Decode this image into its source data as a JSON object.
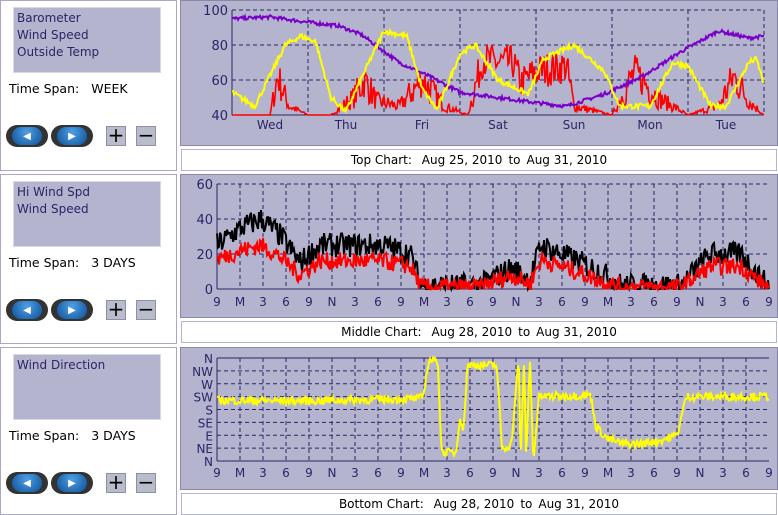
{
  "panels": [
    {
      "series": [
        "Barometer",
        "Wind Speed",
        "Outside Temp"
      ],
      "time_span_label": "Time Span:",
      "time_span": "WEEK"
    },
    {
      "series": [
        "Hi Wind Spd",
        "Wind Speed"
      ],
      "time_span_label": "Time Span:",
      "time_span": "3 DAYS"
    },
    {
      "series": [
        "Wind Direction"
      ],
      "time_span_label": "Time Span:",
      "time_span": "3 DAYS"
    }
  ],
  "buttons": {
    "plus": "+",
    "minus": "−",
    "prev": "◀",
    "next": "▶"
  },
  "captions": [
    {
      "label": "Top Chart:",
      "start": "Aug 25, 2010",
      "to": "to",
      "end": "Aug 31, 2010"
    },
    {
      "label": "Middle Chart:",
      "start": "Aug 28, 2010",
      "to": "to",
      "end": "Aug 31, 2010"
    },
    {
      "label": "Bottom Chart:",
      "start": "Aug 28, 2010",
      "to": "to",
      "end": "Aug 31, 2010"
    }
  ],
  "chart_data": [
    {
      "type": "line",
      "title": "Top Chart",
      "xlim": [
        0,
        7
      ],
      "ylim": [
        40,
        100
      ],
      "yticks": [
        40,
        60,
        80,
        100
      ],
      "xticks": [
        {
          "x": 0.5,
          "label": "Wed"
        },
        {
          "x": 1.5,
          "label": "Thu"
        },
        {
          "x": 2.5,
          "label": "Fri"
        },
        {
          "x": 3.5,
          "label": "Sat"
        },
        {
          "x": 4.5,
          "label": "Sun"
        },
        {
          "x": 5.5,
          "label": "Mon"
        },
        {
          "x": 6.5,
          "label": "Tue"
        }
      ],
      "series": [
        {
          "name": "Wind Speed",
          "color": "#ff0000",
          "noise": 10,
          "points": [
            [
              0,
              40
            ],
            [
              0.5,
              40
            ],
            [
              0.6,
              62
            ],
            [
              0.75,
              45
            ],
            [
              1,
              40
            ],
            [
              1.3,
              40
            ],
            [
              1.6,
              50
            ],
            [
              1.75,
              60
            ],
            [
              1.9,
              48
            ],
            [
              2.2,
              45
            ],
            [
              2.5,
              60
            ],
            [
              2.8,
              45
            ],
            [
              3.1,
              40
            ],
            [
              3.3,
              72
            ],
            [
              3.5,
              70
            ],
            [
              3.7,
              70
            ],
            [
              3.8,
              58
            ],
            [
              4,
              65
            ],
            [
              4.4,
              68
            ],
            [
              4.5,
              45
            ],
            [
              5,
              40
            ],
            [
              5.3,
              65
            ],
            [
              5.6,
              50
            ],
            [
              6,
              40
            ],
            [
              6.4,
              45
            ],
            [
              6.6,
              62
            ],
            [
              6.8,
              48
            ],
            [
              7,
              40
            ]
          ]
        },
        {
          "name": "Barometer",
          "color": "#7a00c8",
          "noise": 1,
          "points": [
            [
              0,
              95
            ],
            [
              0.5,
              96
            ],
            [
              1,
              93
            ],
            [
              1.4,
              91
            ],
            [
              1.7,
              86
            ],
            [
              2.2,
              70
            ],
            [
              2.6,
              62
            ],
            [
              3,
              53
            ],
            [
              3.5,
              50
            ],
            [
              4,
              47
            ],
            [
              4.4,
              45
            ],
            [
              4.9,
              52
            ],
            [
              5.4,
              62
            ],
            [
              5.9,
              76
            ],
            [
              6.4,
              88
            ],
            [
              6.8,
              84
            ],
            [
              7,
              85
            ]
          ]
        },
        {
          "name": "Outside Temp",
          "color": "#ffff00",
          "noise": 1.5,
          "points": [
            [
              0,
              53
            ],
            [
              0.3,
              45
            ],
            [
              0.7,
              80
            ],
            [
              0.9,
              85
            ],
            [
              1.1,
              82
            ],
            [
              1.3,
              50
            ],
            [
              1.5,
              42
            ],
            [
              1.8,
              70
            ],
            [
              2,
              88
            ],
            [
              2.3,
              85
            ],
            [
              2.5,
              55
            ],
            [
              2.7,
              43
            ],
            [
              3,
              75
            ],
            [
              3.2,
              80
            ],
            [
              3.5,
              60
            ],
            [
              3.9,
              52
            ],
            [
              4.1,
              72
            ],
            [
              4.5,
              80
            ],
            [
              4.9,
              65
            ],
            [
              5.1,
              45
            ],
            [
              5.5,
              45
            ],
            [
              5.8,
              70
            ],
            [
              6,
              68
            ],
            [
              6.3,
              45
            ],
            [
              6.5,
              45
            ],
            [
              6.8,
              70
            ],
            [
              6.9,
              72
            ],
            [
              7,
              58
            ]
          ]
        }
      ]
    },
    {
      "type": "line",
      "title": "Middle Chart",
      "xlim": [
        0,
        3
      ],
      "ylim": [
        0,
        60
      ],
      "yticks": [
        0,
        20,
        40,
        60
      ],
      "xtick_labels": [
        "9",
        "M",
        "3",
        "6",
        "9",
        "N",
        "3",
        "6",
        "9",
        "M",
        "3",
        "6",
        "9",
        "N",
        "3",
        "6",
        "9",
        "M",
        "3",
        "6",
        "9",
        "N",
        "3",
        "6",
        "9"
      ],
      "series": [
        {
          "name": "Hi Wind Spd",
          "color": "#000000",
          "noise": 7,
          "points": [
            [
              0,
              25
            ],
            [
              0.13,
              35
            ],
            [
              0.24,
              40
            ],
            [
              0.35,
              30
            ],
            [
              0.45,
              15
            ],
            [
              0.56,
              25
            ],
            [
              0.73,
              25
            ],
            [
              0.9,
              25
            ],
            [
              1.05,
              20
            ],
            [
              1.11,
              2
            ],
            [
              1.27,
              2
            ],
            [
              1.43,
              2
            ],
            [
              1.6,
              12
            ],
            [
              1.7,
              5
            ],
            [
              1.76,
              25
            ],
            [
              1.87,
              20
            ],
            [
              1.98,
              15
            ],
            [
              2.08,
              10
            ],
            [
              2.2,
              2
            ],
            [
              2.52,
              2
            ],
            [
              2.68,
              20
            ],
            [
              2.85,
              20
            ],
            [
              2.96,
              5
            ],
            [
              3,
              2
            ]
          ]
        },
        {
          "name": "Wind Speed",
          "color": "#ff0000",
          "noise": 5,
          "points": [
            [
              0,
              17
            ],
            [
              0.13,
              22
            ],
            [
              0.24,
              25
            ],
            [
              0.35,
              18
            ],
            [
              0.45,
              8
            ],
            [
              0.56,
              16
            ],
            [
              0.73,
              16
            ],
            [
              0.9,
              16
            ],
            [
              1.05,
              13
            ],
            [
              1.11,
              1
            ],
            [
              1.27,
              1
            ],
            [
              1.43,
              1
            ],
            [
              1.6,
              8
            ],
            [
              1.7,
              3
            ],
            [
              1.76,
              17
            ],
            [
              1.87,
              13
            ],
            [
              1.98,
              9
            ],
            [
              2.08,
              5
            ],
            [
              2.2,
              1
            ],
            [
              2.52,
              1
            ],
            [
              2.68,
              13
            ],
            [
              2.85,
              13
            ],
            [
              2.96,
              3
            ],
            [
              3,
              1
            ]
          ]
        }
      ]
    },
    {
      "type": "line",
      "title": "Bottom Chart",
      "xlim": [
        0,
        3
      ],
      "ylim": [
        0,
        360
      ],
      "ylabels": [
        "N",
        "NE",
        "E",
        "SE",
        "S",
        "SW",
        "W",
        "NW",
        "N"
      ],
      "xtick_labels": [
        "9",
        "M",
        "3",
        "6",
        "9",
        "N",
        "3",
        "6",
        "9",
        "M",
        "3",
        "6",
        "9",
        "N",
        "3",
        "6",
        "9",
        "M",
        "3",
        "6",
        "9",
        "N",
        "3",
        "6",
        "9"
      ],
      "series": [
        {
          "name": "Wind Direction",
          "color": "#ffff00",
          "noise": 14,
          "points": [
            [
              0,
              212
            ],
            [
              0.5,
              210
            ],
            [
              1.1,
              218
            ],
            [
              1.12,
              225
            ],
            [
              1.15,
              350
            ],
            [
              1.2,
              355
            ],
            [
              1.22,
              30
            ],
            [
              1.3,
              30
            ],
            [
              1.32,
              160
            ],
            [
              1.34,
              100
            ],
            [
              1.36,
              335
            ],
            [
              1.52,
              335
            ],
            [
              1.55,
              40
            ],
            [
              1.6,
              60
            ],
            [
              1.64,
              360
            ],
            [
              1.65,
              0
            ],
            [
              1.67,
              360
            ],
            [
              1.68,
              0
            ],
            [
              1.7,
              360
            ],
            [
              1.72,
              0
            ],
            [
              1.75,
              225
            ],
            [
              2.03,
              230
            ],
            [
              2.06,
              120
            ],
            [
              2.12,
              80
            ],
            [
              2.2,
              60
            ],
            [
              2.3,
              60
            ],
            [
              2.4,
              70
            ],
            [
              2.5,
              90
            ],
            [
              2.55,
              225
            ],
            [
              3,
              225
            ]
          ]
        }
      ]
    }
  ]
}
